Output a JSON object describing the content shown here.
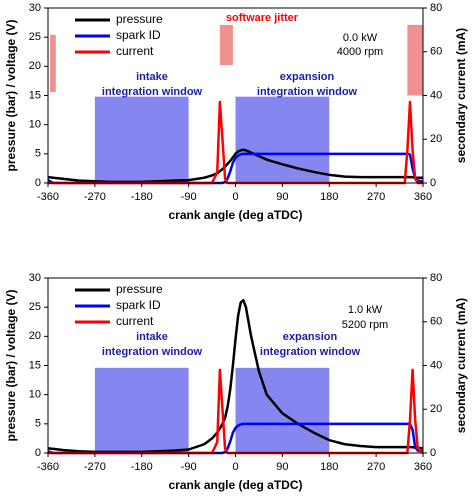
{
  "chart_data": [
    {
      "type": "line",
      "x_label": "crank angle (deg aTDC)",
      "y_label": "pressure (bar) / voltage (V)",
      "y2_label": "secondary current (mA)",
      "xlim": [
        -360,
        360
      ],
      "xticks": [
        -360,
        -270,
        -180,
        -90,
        0,
        90,
        180,
        270,
        360
      ],
      "ylim": [
        0,
        30
      ],
      "yticks": [
        0,
        5,
        10,
        15,
        20,
        25,
        30
      ],
      "y2lim": [
        0,
        80
      ],
      "y2ticks": [
        0,
        20,
        40,
        60,
        80
      ],
      "x": [
        -360,
        -350,
        -330,
        -300,
        -270,
        -240,
        -210,
        -180,
        -150,
        -120,
        -90,
        -60,
        -45,
        -35,
        -30,
        -25,
        -20,
        -15,
        -10,
        -5,
        0,
        5,
        10,
        15,
        20,
        30,
        45,
        60,
        90,
        120,
        150,
        180,
        210,
        240,
        270,
        300,
        320,
        325,
        330,
        335,
        340,
        345,
        350,
        360
      ],
      "series": [
        {
          "name": "pressure",
          "color": "#000000",
          "values": [
            1.0,
            0.9,
            0.7,
            0.4,
            0.3,
            0.2,
            0.2,
            0.2,
            0.3,
            0.4,
            0.5,
            0.9,
            1.3,
            1.7,
            2.0,
            2.4,
            2.8,
            3.3,
            3.8,
            4.4,
            5.0,
            5.4,
            5.6,
            5.7,
            5.6,
            5.2,
            4.6,
            4.0,
            3.2,
            2.5,
            1.9,
            1.4,
            1.1,
            1.0,
            1.0,
            1.0,
            1.0,
            1.0,
            1.0,
            1.0,
            1.0,
            0.9,
            0.9,
            0.9
          ]
        },
        {
          "name": "spark ID",
          "color": "#0000ff",
          "values": [
            0.5,
            0,
            0,
            0,
            0,
            0,
            0,
            0,
            0,
            0,
            0,
            0,
            0,
            0,
            0,
            0,
            0.2,
            0.8,
            2.0,
            3.5,
            4.3,
            4.7,
            4.9,
            5.0,
            5.0,
            5.0,
            5.0,
            5.0,
            5.0,
            5.0,
            5.0,
            5.0,
            5.0,
            5.0,
            5.0,
            5.0,
            5.0,
            5.0,
            5.0,
            4.9,
            2.5,
            0.8,
            0.4,
            0.3
          ]
        },
        {
          "name": "current",
          "color": "#ff0000",
          "axis": "y2",
          "values": [
            0,
            0,
            0,
            0,
            0,
            0,
            0,
            0,
            0,
            0,
            0,
            0,
            0,
            5,
            37,
            20,
            2,
            0,
            0,
            0,
            0,
            0,
            0,
            0,
            0,
            0,
            0,
            0,
            0,
            0,
            0,
            0,
            0,
            0,
            0,
            0,
            0,
            0,
            15,
            37,
            15,
            2,
            0,
            0
          ]
        }
      ],
      "regions": [
        {
          "x0": -270,
          "x1": -90,
          "y0": 0,
          "y1": 14.8,
          "color": "#7f7ff0"
        },
        {
          "x0": 0,
          "x1": 180,
          "y0": 0,
          "y1": 14.8,
          "color": "#7f7ff0"
        },
        {
          "x0": -356,
          "x1": -345,
          "y0": 15.6,
          "y1": 25.4,
          "color": "#f08a8a"
        },
        {
          "x0": -30,
          "x1": -5,
          "y0": 20.2,
          "y1": 27.1,
          "color": "#f08a8a"
        },
        {
          "x0": 330,
          "x1": 360,
          "y0": 15,
          "y1": 27.1,
          "color": "#f08a8a"
        }
      ],
      "annotations": [
        {
          "text": "software jitter",
          "color": "#ff0000"
        },
        {
          "text": "0.0 kW",
          "color": "#000000"
        },
        {
          "text": "4000 rpm",
          "color": "#000000"
        },
        {
          "text": "intake",
          "color": "#1c1ca8"
        },
        {
          "text": "integration window",
          "color": "#1c1ca8"
        },
        {
          "text": "expansion",
          "color": "#1c1ca8"
        },
        {
          "text": "integration window",
          "color": "#1c1ca8"
        }
      ]
    },
    {
      "type": "line",
      "x_label": "crank angle (deg aTDC)",
      "y_label": "pressure (bar) / voltage (V)",
      "y2_label": "secondary current (mA)",
      "xlim": [
        -360,
        360
      ],
      "xticks": [
        -360,
        -270,
        -180,
        -90,
        0,
        90,
        180,
        270,
        360
      ],
      "ylim": [
        0,
        30
      ],
      "yticks": [
        0,
        5,
        10,
        15,
        20,
        25,
        30
      ],
      "y2lim": [
        0,
        80
      ],
      "y2ticks": [
        0,
        20,
        40,
        60,
        80
      ],
      "x": [
        -360,
        -350,
        -330,
        -300,
        -270,
        -240,
        -210,
        -180,
        -150,
        -120,
        -90,
        -60,
        -45,
        -35,
        -30,
        -25,
        -20,
        -15,
        -10,
        -5,
        0,
        5,
        10,
        15,
        20,
        30,
        45,
        60,
        90,
        120,
        150,
        180,
        210,
        240,
        270,
        300,
        320,
        325,
        330,
        335,
        340,
        345,
        350,
        360
      ],
      "series": [
        {
          "name": "pressure",
          "color": "#000000",
          "values": [
            0.8,
            0.7,
            0.5,
            0.3,
            0.2,
            0.2,
            0.2,
            0.2,
            0.3,
            0.4,
            0.6,
            1.5,
            2.5,
            3.5,
            4.2,
            5.0,
            6.0,
            8.0,
            11.0,
            15.0,
            19.5,
            23.5,
            25.8,
            26.2,
            25.0,
            20.0,
            14.0,
            10.0,
            6.8,
            5.0,
            3.5,
            2.2,
            1.5,
            1.2,
            1.0,
            1.0,
            1.0,
            1.0,
            1.0,
            1.0,
            1.0,
            0.9,
            0.9,
            0.8
          ]
        },
        {
          "name": "spark ID",
          "color": "#0000ff",
          "values": [
            0.3,
            0,
            0,
            0,
            0,
            0,
            0,
            0,
            0,
            0,
            0,
            0,
            0,
            0,
            0,
            0,
            0.2,
            0.8,
            2.0,
            3.5,
            4.3,
            4.7,
            4.9,
            5.0,
            5.0,
            5.0,
            5.0,
            5.0,
            5.0,
            5.0,
            5.0,
            5.0,
            5.0,
            5.0,
            5.0,
            5.0,
            5.0,
            5.0,
            5.0,
            5.0,
            4.0,
            1.0,
            0.4,
            0.3
          ]
        },
        {
          "name": "current",
          "color": "#ff0000",
          "axis": "y2",
          "values": [
            0,
            0,
            0,
            0,
            0,
            0,
            0,
            0,
            0,
            0,
            0,
            0,
            0,
            5,
            38,
            20,
            2,
            0,
            0,
            0,
            0,
            0,
            0,
            0,
            0,
            0,
            0,
            0,
            0,
            0,
            0,
            0,
            0,
            0,
            0,
            0,
            0,
            0,
            0,
            15,
            38,
            15,
            2,
            0
          ]
        }
      ],
      "regions": [
        {
          "x0": -270,
          "x1": -90,
          "y0": 0,
          "y1": 14.6,
          "color": "#7f7ff0"
        },
        {
          "x0": 0,
          "x1": 180,
          "y0": 0,
          "y1": 14.6,
          "color": "#7f7ff0"
        }
      ],
      "annotations": [
        {
          "text": "1.0 kW",
          "color": "#000000"
        },
        {
          "text": "5200 rpm",
          "color": "#000000"
        },
        {
          "text": "intake",
          "color": "#1c1ca8"
        },
        {
          "text": "integration window",
          "color": "#1c1ca8"
        },
        {
          "text": "expansion",
          "color": "#1c1ca8"
        },
        {
          "text": "integration window",
          "color": "#1c1ca8"
        }
      ]
    }
  ]
}
